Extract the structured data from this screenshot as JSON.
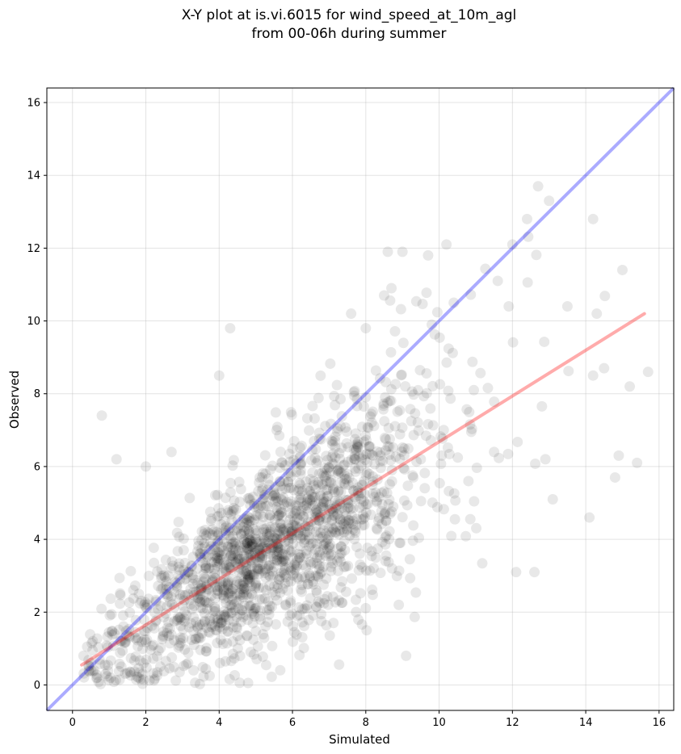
{
  "chart_data": {
    "type": "scatter",
    "title_line1": "X-Y plot at is.vi.6015 for wind_speed_at_10m_agl",
    "title_line2": "from 00-06h during summer",
    "xlabel": "Simulated",
    "ylabel": "Observed",
    "xlim": [
      -0.7,
      16.4
    ],
    "ylim": [
      -0.7,
      16.4
    ],
    "xticks": [
      "0",
      "2",
      "4",
      "6",
      "8",
      "10",
      "12",
      "14",
      "16"
    ],
    "yticks": [
      "0",
      "2",
      "4",
      "6",
      "8",
      "10",
      "12",
      "14",
      "16"
    ],
    "grid": true,
    "legend": "none",
    "colors": {
      "points": "#000000",
      "one_to_one": "#0000ff",
      "fit": "#ff0000"
    },
    "one_to_one_line": {
      "x": [
        -0.7,
        16.4
      ],
      "y": [
        -0.7,
        16.4
      ]
    },
    "fit_line": {
      "x": [
        0.25,
        15.6
      ],
      "y": [
        0.55,
        10.2
      ]
    },
    "sampled_points": {
      "x": [
        0.8,
        1.2,
        2.0,
        2.7,
        4.0,
        4.3,
        0.3,
        0.5,
        0.9,
        1.8,
        3.3,
        8.9,
        9.1,
        12.1,
        12.6,
        13.1,
        12.9,
        14.1,
        14.2,
        14.5,
        14.9,
        15.2,
        15.4,
        15.7,
        15.0,
        12.0,
        12.4,
        14.2,
        14.8,
        9.7,
        10.2,
        11.6,
        11.9,
        12.7,
        13.0,
        13.5,
        14.3,
        11.5,
        10.8,
        9.5,
        8.6,
        8.7,
        9.0,
        7.6,
        8.0,
        8.5,
        9.8,
        10.4
      ],
      "y": [
        7.4,
        6.2,
        6.0,
        6.4,
        8.5,
        9.8,
        0.8,
        0.6,
        0.3,
        0.2,
        0.4,
        2.2,
        0.8,
        3.1,
        3.1,
        5.1,
        6.2,
        4.6,
        8.5,
        8.7,
        6.3,
        8.2,
        6.1,
        8.6,
        11.4,
        12.1,
        12.8,
        12.8,
        5.7,
        11.8,
        12.1,
        11.1,
        10.4,
        13.7,
        13.3,
        10.4,
        10.2,
        6.4,
        5.6,
        6.2,
        11.9,
        10.9,
        11.9,
        10.2,
        9.8,
        10.7,
        9.9,
        10.5
      ]
    },
    "cluster": {
      "n_points": 1700,
      "center_x": 5.5,
      "note_style": "dense"
    }
  }
}
